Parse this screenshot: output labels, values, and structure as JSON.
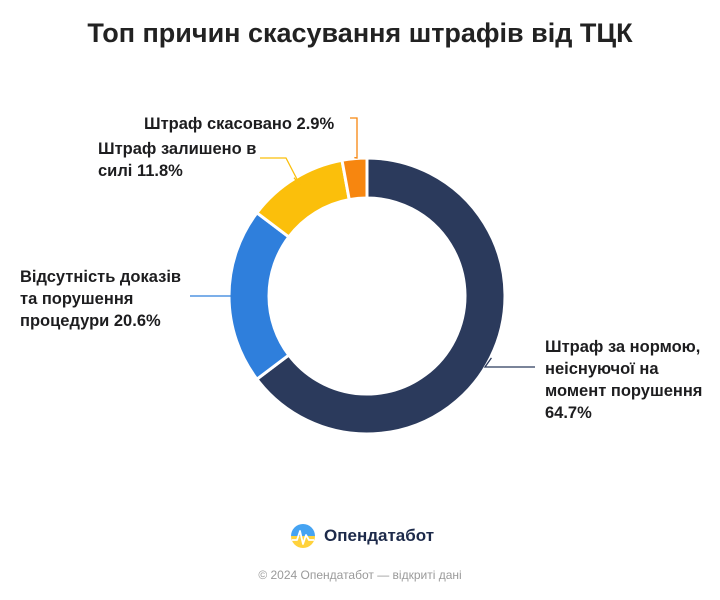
{
  "chart_data": {
    "type": "pie",
    "donut": true,
    "title": "Топ причин скасування штрафів від ТЦК",
    "series": [
      {
        "name": "Штраф за нормою, неіснуючої на момент порушення",
        "value": 64.7,
        "color": "#2b3a5c",
        "label_lines": [
          "Штраф за нормою,",
          "неіснуючої на",
          "момент порушення",
          "64.7%"
        ]
      },
      {
        "name": "Відсутність доказів та порушення процедури",
        "value": 20.6,
        "color": "#2f7fdc",
        "label_lines": [
          "Відсутність доказів",
          "та порушення",
          "процедури 20.6%"
        ]
      },
      {
        "name": "Штраф залишено в силі",
        "value": 11.8,
        "color": "#fbbf0b",
        "label_lines": [
          "Штраф залишено в",
          "силі 11.8%"
        ]
      },
      {
        "name": "Штраф скасовано",
        "value": 2.9,
        "color": "#f7860f",
        "label_lines": [
          "Штраф скасовано 2.9%"
        ]
      }
    ]
  },
  "brand": {
    "name": "Опендатабот"
  },
  "footer": {
    "text": "© 2024 Опендатабот — відкриті дані"
  }
}
